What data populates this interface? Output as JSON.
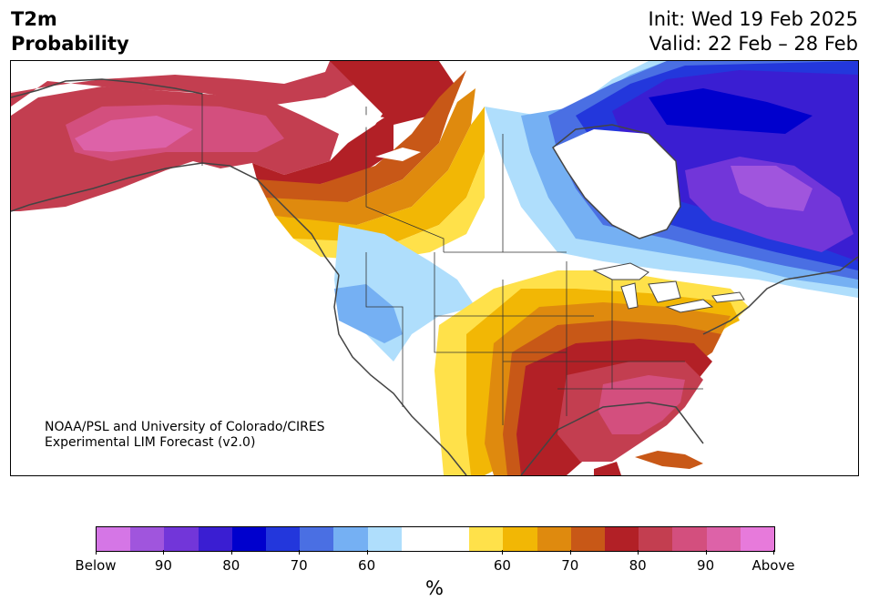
{
  "header": {
    "title_line1": "T2m",
    "title_line2": "Probability",
    "init_line": "Init: Wed 19 Feb 2025",
    "valid_line": "Valid: 22 Feb – 28 Feb"
  },
  "credit": {
    "line1": "NOAA/PSL and University of Colorado/CIRES",
    "line2": "Experimental LIM Forecast (v2.0)"
  },
  "colors": {
    "below": [
      "#d576e6",
      "#a055dd",
      "#7236d9",
      "#3a1ed2",
      "#0000cd",
      "#2337dc",
      "#4a6fe3",
      "#75b0f3",
      "#afdefc"
    ],
    "neutral": "#ffffff",
    "above": [
      "#ffe14a",
      "#f2b705",
      "#df8a0e",
      "#c85817",
      "#b22026",
      "#c33e50",
      "#d34f7e",
      "#dd62a8",
      "#e77adb"
    ],
    "coast": "#444444",
    "border": "#333333"
  },
  "legend": {
    "ticks": [
      {
        "label": "Below",
        "boundary": 0
      },
      {
        "label": "90",
        "boundary": 2
      },
      {
        "label": "80",
        "boundary": 4
      },
      {
        "label": "70",
        "boundary": 6
      },
      {
        "label": "60",
        "boundary": 8
      },
      {
        "label": "60",
        "boundary": 12
      },
      {
        "label": "70",
        "boundary": 14
      },
      {
        "label": "80",
        "boundary": 16
      },
      {
        "label": "90",
        "boundary": 18
      },
      {
        "label": "Above",
        "boundary": 20
      }
    ],
    "unit": "%"
  }
}
